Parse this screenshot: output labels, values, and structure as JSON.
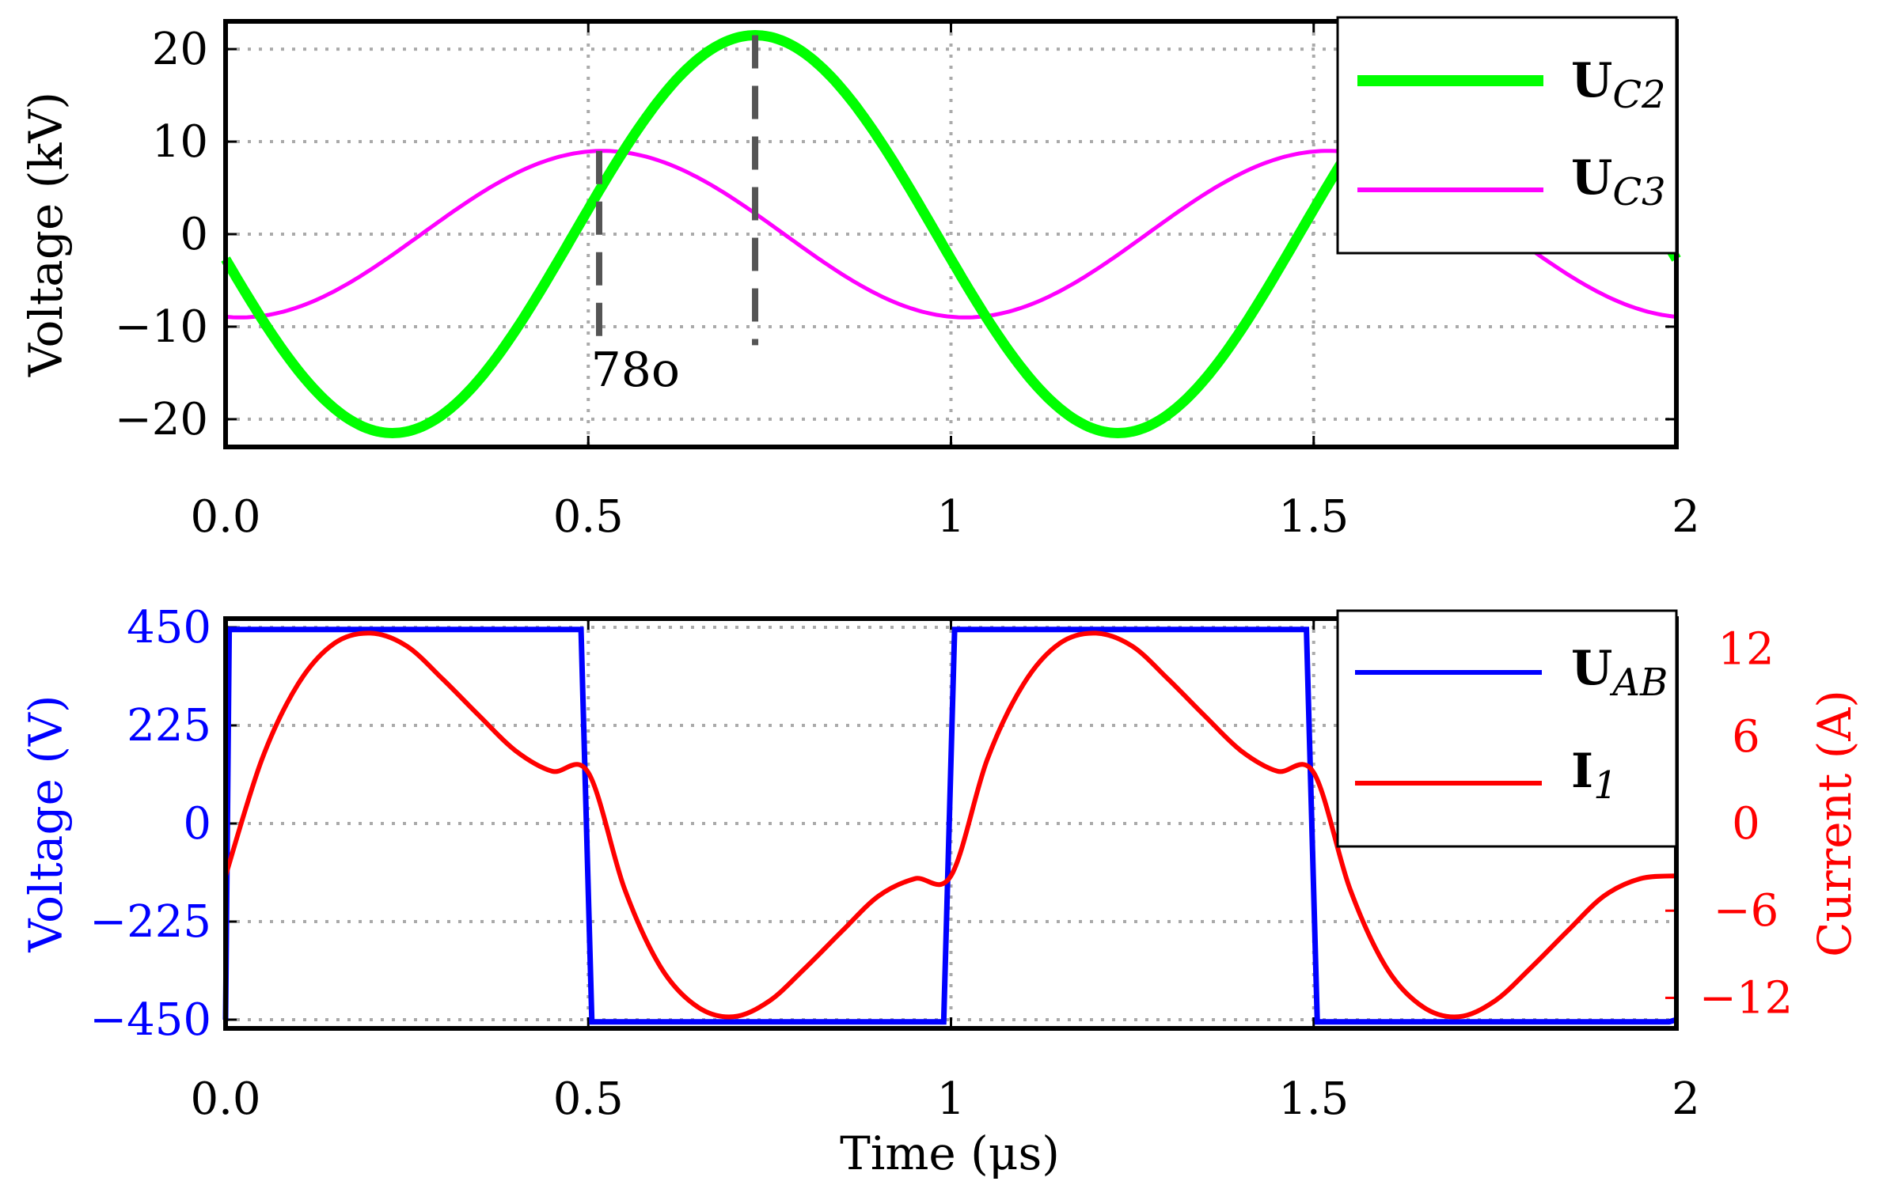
{
  "chart_data": [
    {
      "type": "line",
      "ylabel": "Voltage (kV)",
      "xlim": [
        0,
        2
      ],
      "ylim": [
        -23,
        23
      ],
      "grid": true,
      "x_ticks": [
        0,
        0.5,
        1,
        1.5,
        2
      ],
      "x_tick_labels": [
        "0.0",
        "0.5",
        "1",
        "1.5",
        "2"
      ],
      "y_ticks": [
        -20,
        -10,
        0,
        10,
        20
      ],
      "y_tick_labels": [
        "−20",
        "−10",
        "0",
        "10",
        "20"
      ],
      "legend_position": "top-right",
      "series": [
        {
          "name": "U_C2",
          "label_main": "U",
          "label_sub": "C2",
          "color": "#00ff00",
          "amplitude": 21.5,
          "period": 1,
          "peak_at": 0.73,
          "x": [
            0,
            0.125,
            0.23,
            0.35,
            0.5,
            0.6,
            0.73,
            0.85,
            1.0,
            1.1,
            1.23,
            1.35,
            1.5,
            1.6,
            1.73,
            1.85,
            2.0
          ],
          "values": [
            -2.4,
            -16.3,
            -21.5,
            -15.2,
            3.3,
            15.6,
            21.5,
            15.2,
            -3.3,
            -15.6,
            -21.5,
            -15.2,
            3.3,
            15.6,
            21.5,
            15.2,
            -2.4
          ]
        },
        {
          "name": "U_C3",
          "label_main": "U",
          "label_sub": "C3",
          "color": "#ff00ff",
          "amplitude": 9,
          "period": 1,
          "peak_at": 0.52,
          "x": [
            0,
            0.25,
            0.52,
            0.75,
            1.02,
            1.25,
            1.52,
            1.75,
            2.0
          ],
          "values": [
            -9,
            -0.3,
            9,
            0.3,
            -9,
            -0.3,
            9,
            0.3,
            -9
          ]
        }
      ],
      "annotations": [
        {
          "type": "dashed-vline",
          "x": 0.515,
          "y_from": 9,
          "y_to": -12
        },
        {
          "type": "dashed-vline",
          "x": 0.73,
          "y_from": 21.5,
          "y_to": -12
        },
        {
          "type": "text",
          "text": "78o",
          "x": 0.58,
          "y": -13
        }
      ]
    },
    {
      "type": "line",
      "xlabel": "Time (μs)",
      "ylabel": "Voltage (V)",
      "ylabel_right": "Current (A)",
      "xlim": [
        0,
        2
      ],
      "ylim": [
        -470,
        470
      ],
      "ylim_right": [
        -14.1,
        14.1
      ],
      "grid": true,
      "x_ticks": [
        0,
        0.5,
        1,
        1.5,
        2
      ],
      "x_tick_labels": [
        "0.0",
        "0.5",
        "1",
        "1.5",
        "2"
      ],
      "y_ticks": [
        -450,
        -225,
        0,
        225,
        450
      ],
      "y_tick_labels": [
        "−450",
        "−225",
        "0",
        "225",
        "450"
      ],
      "y_ticks_right": [
        -12,
        -6,
        0,
        6,
        12
      ],
      "y_tick_labels_right": [
        "−12",
        "−6",
        "0",
        "6",
        "12"
      ],
      "left_axis_color": "#0000ff",
      "right_axis_color": "#ff0000",
      "legend_position": "top-right",
      "series": [
        {
          "name": "U_AB",
          "label_main": "U",
          "label_sub": "AB",
          "color": "#0000ff",
          "axis": "left",
          "x": [
            0,
            0.005,
            0.49,
            0.505,
            0.99,
            1.005,
            1.49,
            1.505,
            1.99,
            2.0
          ],
          "values": [
            -450,
            445,
            445,
            -455,
            -455,
            445,
            445,
            -455,
            -455,
            -450
          ]
        },
        {
          "name": "I_1",
          "label_main": "I",
          "label_sub": "1",
          "color": "#ff0000",
          "axis": "right",
          "x": [
            0,
            0.05,
            0.1,
            0.15,
            0.2,
            0.25,
            0.3,
            0.35,
            0.4,
            0.45,
            0.5,
            0.55,
            0.6,
            0.65,
            0.7,
            0.75,
            0.8,
            0.85,
            0.9,
            0.95,
            1.0,
            1.05,
            1.1,
            1.15,
            1.2,
            1.25,
            1.3,
            1.35,
            1.4,
            1.45,
            1.5,
            1.55,
            1.6,
            1.65,
            1.7,
            1.75,
            1.8,
            1.85,
            1.9,
            1.95,
            2.0
          ],
          "values": [
            -3.6,
            4.4,
            9.6,
            12.4,
            13.1,
            12.2,
            9.9,
            7.4,
            5.0,
            3.6,
            3.5,
            -4.5,
            -9.9,
            -12.6,
            -13.3,
            -12.2,
            -9.9,
            -7.4,
            -5.0,
            -3.8,
            -3.6,
            4.4,
            9.6,
            12.4,
            13.1,
            12.2,
            9.9,
            7.4,
            5.0,
            3.6,
            3.5,
            -4.5,
            -9.9,
            -12.6,
            -13.3,
            -12.2,
            -9.9,
            -7.4,
            -5.0,
            -3.8,
            -3.6
          ]
        }
      ]
    }
  ]
}
